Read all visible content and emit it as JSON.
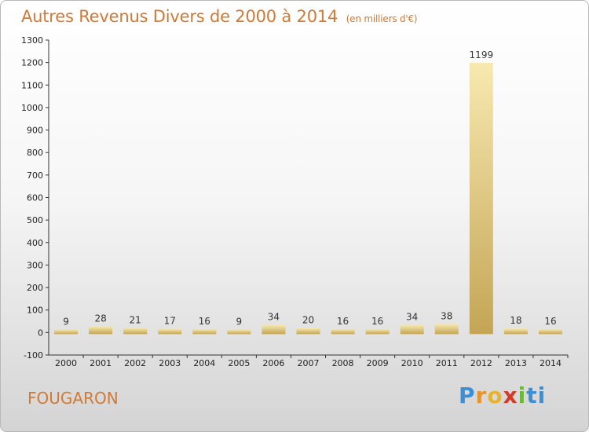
{
  "header": {
    "title": "Autres Revenus Divers de 2000 à 2014",
    "unit": "(en milliers d'€)"
  },
  "footer": {
    "commune": "FOUGARON",
    "logo": "Proxiti",
    "logo_letters": [
      "P",
      "r",
      "o",
      "x",
      "i",
      "ti"
    ]
  },
  "colors": {
    "title": "#d07a36",
    "bar_light": "#f5e3a0",
    "bar_dark": "#c8a858",
    "axis": "#333333"
  },
  "chart_data": {
    "type": "bar",
    "title": "Autres Revenus Divers de 2000 à 2014",
    "xlabel": "",
    "ylabel": "",
    "categories": [
      "2000",
      "2001",
      "2002",
      "2003",
      "2004",
      "2005",
      "2006",
      "2007",
      "2008",
      "2009",
      "2010",
      "2011",
      "2012",
      "2013",
      "2014"
    ],
    "values": [
      9,
      28,
      21,
      17,
      16,
      9,
      34,
      20,
      16,
      16,
      34,
      38,
      1199,
      18,
      16
    ],
    "ylim": [
      -100,
      1300
    ],
    "yticks": [
      -100,
      0,
      100,
      200,
      300,
      400,
      500,
      600,
      700,
      800,
      900,
      1000,
      1100,
      1200,
      1300
    ],
    "grid": false
  }
}
